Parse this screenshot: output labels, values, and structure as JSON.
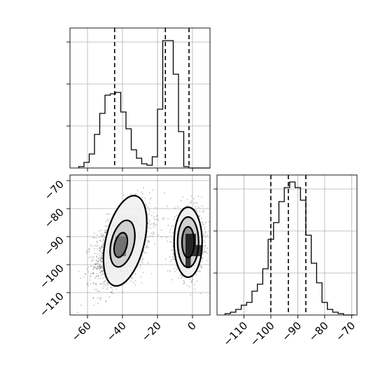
{
  "chart_data": [
    {
      "id": "hist-x",
      "type": "bar",
      "xlim": [
        -70,
        10
      ],
      "ylim": [
        0,
        1
      ],
      "x_bin_edges": [
        -65,
        -62,
        -59,
        -56,
        -53,
        -50,
        -47,
        -44,
        -41,
        -38,
        -35,
        -32,
        -29,
        -26,
        -23,
        -20,
        -17,
        -14,
        -11,
        -8,
        -5,
        -2,
        1,
        4,
        7,
        10
      ],
      "values": [
        0.01,
        0.04,
        0.1,
        0.24,
        0.39,
        0.52,
        0.53,
        0.54,
        0.4,
        0.28,
        0.13,
        0.07,
        0.03,
        0.02,
        0.08,
        0.42,
        0.91,
        0.91,
        0.67,
        0.26,
        0.01,
        0,
        0,
        0,
        0
      ],
      "quantiles": [
        -44.5,
        -15.5,
        -2
      ],
      "grid": true
    },
    {
      "id": "hist-y",
      "type": "bar",
      "xlim": [
        -120,
        -68
      ],
      "ylim": [
        0,
        1
      ],
      "x_bin_edges": [
        -117,
        -115,
        -113,
        -111,
        -109,
        -107,
        -105,
        -103,
        -101,
        -99,
        -97,
        -95,
        -93,
        -91,
        -89,
        -87,
        -85,
        -83,
        -81,
        -79,
        -77,
        -75,
        -73,
        -71,
        -69
      ],
      "values": [
        0.01,
        0.02,
        0.04,
        0.07,
        0.09,
        0.17,
        0.22,
        0.33,
        0.54,
        0.66,
        0.81,
        0.91,
        0.95,
        0.91,
        0.82,
        0.57,
        0.37,
        0.23,
        0.09,
        0.04,
        0.02,
        0.01,
        0,
        0
      ],
      "quantiles": [
        -100,
        -93.5,
        -87
      ],
      "grid": true
    },
    {
      "id": "hist2d",
      "type": "scatter",
      "xlim": [
        -70,
        10
      ],
      "ylim": [
        -118,
        -68
      ],
      "xticks": [
        -60,
        -40,
        -20,
        0
      ],
      "yticks": [
        -110,
        -100,
        -90,
        -80,
        -70
      ],
      "grid": true,
      "clusters": [
        {
          "center_x": -40,
          "center_y": -93,
          "spread_x": 8,
          "spread_y": 7,
          "tilt": 0.5,
          "count": 1900
        },
        {
          "center_x": -2,
          "center_y": -92,
          "spread_x": 4,
          "spread_y": 5.5,
          "tilt": 0.05,
          "count": 1400
        }
      ],
      "contours": [
        {
          "center_x": -38.5,
          "center_y": -91.5,
          "radius_x": 11,
          "radius_y": 16.5,
          "tilt": 0.3
        },
        {
          "center_x": -40,
          "center_y": -92.5,
          "radius_x": 6.5,
          "radius_y": 8.5,
          "tilt": 0.3
        },
        {
          "center_x": -41,
          "center_y": -93,
          "radius_x": 3.5,
          "radius_y": 4.5,
          "tilt": 0.3
        },
        {
          "center_x": -2.5,
          "center_y": -92,
          "radius_x": 8,
          "radius_y": 12.5,
          "tilt": 0
        },
        {
          "center_x": -2.5,
          "center_y": -92,
          "radius_x": 6,
          "radius_y": 9,
          "tilt": 0
        },
        {
          "center_x": -2.5,
          "center_y": -92,
          "radius_x": 3.5,
          "radius_y": 5.5,
          "tilt": 0
        }
      ]
    }
  ],
  "labels": {
    "x_ticks_2d": [
      "−60",
      "−40",
      "−20",
      "0"
    ],
    "y_ticks_2d": [
      "−110",
      "−100",
      "−90",
      "−80",
      "−70"
    ],
    "x_ticks_hist_y": [
      "−110",
      "−100",
      "−90",
      "−80",
      "−70"
    ]
  }
}
